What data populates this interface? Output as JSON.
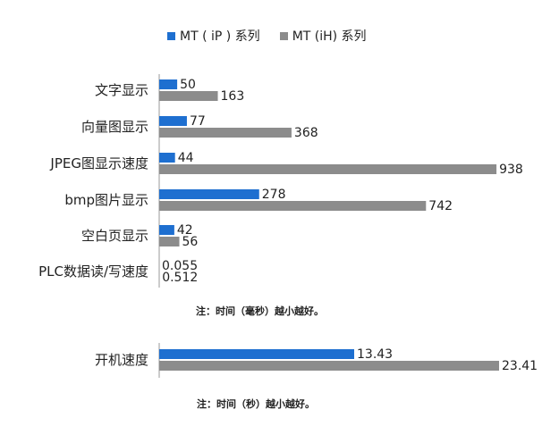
{
  "legend": {
    "series_a": "MT ( iP ) 系列",
    "series_b": "MT (iH) 系列"
  },
  "notes": {
    "main": "注：时间（毫秒）越小越好。",
    "startup": "注：时间（秒）越小越好。"
  },
  "colors": {
    "series_a": "#1e6fd0",
    "series_b": "#8c8c8c",
    "axis": "#9a9a9a"
  },
  "chart_data": [
    {
      "type": "bar",
      "orientation": "horizontal",
      "categories": [
        "文字显示",
        "向量图显示",
        "JPEG图显示速度",
        "bmp图片显示",
        "空白页显示",
        "PLC数据读/写速度"
      ],
      "series": [
        {
          "name": "MT ( iP ) 系列",
          "values": [
            50,
            77,
            44,
            278,
            42,
            0.055
          ],
          "labels": [
            "50",
            "77",
            "44",
            "278",
            "42",
            "0.055"
          ]
        },
        {
          "name": "MT (iH) 系列",
          "values": [
            163,
            368,
            938,
            742,
            56,
            0.512
          ],
          "labels": [
            "163",
            "368",
            "938",
            "742",
            "56",
            "0.512"
          ]
        }
      ],
      "xlim": [
        0,
        1000
      ]
    },
    {
      "type": "bar",
      "orientation": "horizontal",
      "categories": [
        "开机速度"
      ],
      "series": [
        {
          "name": "MT ( iP ) 系列",
          "values": [
            13.43
          ],
          "labels": [
            "13.43"
          ]
        },
        {
          "name": "MT (iH) 系列",
          "values": [
            23.41
          ],
          "labels": [
            "23.41"
          ]
        }
      ],
      "xlim": [
        0,
        23.41
      ]
    }
  ]
}
